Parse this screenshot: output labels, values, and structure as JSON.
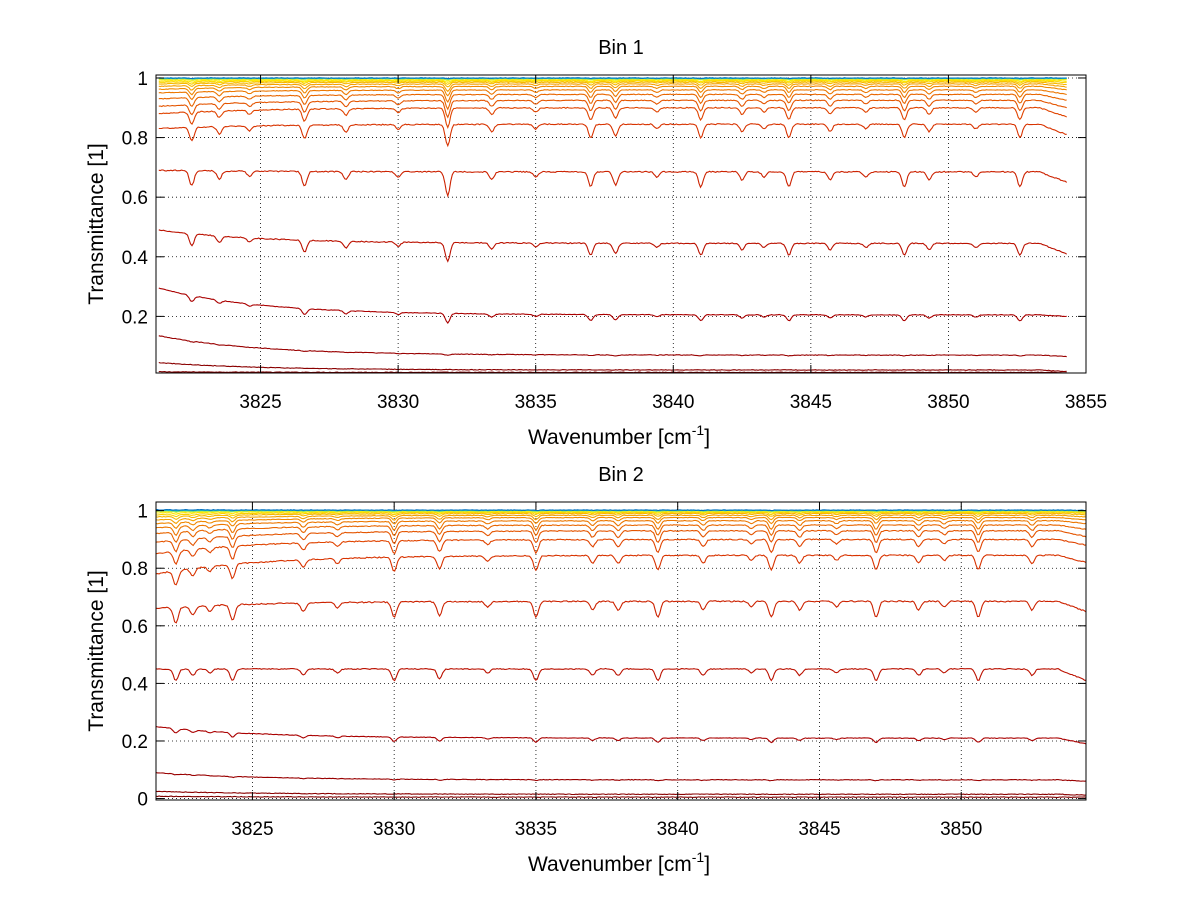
{
  "chart_data": [
    {
      "type": "line",
      "title": "Bin 1",
      "xlabel": "Wavenumber [cm",
      "xlabel_sup": "-1",
      "xlabel_end": "]",
      "ylabel": "Transmittance [1]",
      "xlim": [
        3821.2,
        3855
      ],
      "ylim": [
        0.01,
        1.01
      ],
      "xticks": [
        3825,
        3830,
        3835,
        3840,
        3845,
        3850,
        3855
      ],
      "yticks": [
        0.2,
        0.4,
        0.6,
        0.8,
        1
      ],
      "ytick_labels": [
        "0.2",
        "0.4",
        "0.6",
        "0.8",
        "1"
      ],
      "grid": true,
      "x_start": 3821.3,
      "x_end": 3854.3,
      "absorption_lines": [
        3822.5,
        3823.5,
        3824.6,
        3826.6,
        3828.1,
        3830.0,
        3831.8,
        3833.4,
        3835.0,
        3837.0,
        3837.9,
        3839.4,
        3841.0,
        3842.5,
        3843.3,
        3844.2,
        3845.7,
        3847.0,
        3848.4,
        3849.3,
        3851.0,
        3852.6
      ],
      "series": [
        {
          "baseline": 0.012,
          "start": 0.014,
          "end": 0.011,
          "depth": 0.0,
          "color": "#7f0000"
        },
        {
          "baseline": 0.02,
          "start": 0.045,
          "end": 0.015,
          "depth": 0.0,
          "color": "#8a0000"
        },
        {
          "baseline": 0.07,
          "start": 0.135,
          "end": 0.065,
          "depth": 0.003,
          "color": "#990000"
        },
        {
          "baseline": 0.205,
          "start": 0.295,
          "end": 0.2,
          "depth": 0.02,
          "color": "#aa0000"
        },
        {
          "baseline": 0.445,
          "start": 0.49,
          "end": 0.41,
          "depth": 0.04,
          "color": "#bb1100"
        },
        {
          "baseline": 0.685,
          "start": 0.69,
          "end": 0.65,
          "depth": 0.05,
          "color": "#cc2200"
        },
        {
          "baseline": 0.845,
          "start": 0.83,
          "end": 0.81,
          "depth": 0.045,
          "color": "#d83300"
        },
        {
          "baseline": 0.9,
          "start": 0.88,
          "end": 0.87,
          "depth": 0.04,
          "color": "#e04400"
        },
        {
          "baseline": 0.925,
          "start": 0.905,
          "end": 0.9,
          "depth": 0.035,
          "color": "#e45500"
        },
        {
          "baseline": 0.945,
          "start": 0.93,
          "end": 0.925,
          "depth": 0.03,
          "color": "#e86600"
        },
        {
          "baseline": 0.96,
          "start": 0.95,
          "end": 0.945,
          "depth": 0.025,
          "color": "#ec7700"
        },
        {
          "baseline": 0.972,
          "start": 0.962,
          "end": 0.96,
          "depth": 0.02,
          "color": "#f08800"
        },
        {
          "baseline": 0.98,
          "start": 0.972,
          "end": 0.97,
          "depth": 0.015,
          "color": "#f4a000"
        },
        {
          "baseline": 0.986,
          "start": 0.98,
          "end": 0.978,
          "depth": 0.01,
          "color": "#f7b800"
        },
        {
          "baseline": 0.99,
          "start": 0.986,
          "end": 0.985,
          "depth": 0.007,
          "color": "#fad000"
        },
        {
          "baseline": 0.993,
          "start": 0.99,
          "end": 0.99,
          "depth": 0.005,
          "color": "#fde800"
        },
        {
          "baseline": 0.996,
          "start": 0.995,
          "end": 0.995,
          "depth": 0.003,
          "color": "#e8f020"
        },
        {
          "baseline": 0.998,
          "start": 0.998,
          "end": 0.998,
          "depth": 0.002,
          "color": "#80e070"
        },
        {
          "baseline": 0.999,
          "start": 0.999,
          "end": 0.999,
          "depth": 0.001,
          "color": "#20c0c0"
        },
        {
          "baseline": 1.0,
          "start": 1.0,
          "end": 1.0,
          "depth": 0.001,
          "color": "#0070c0"
        }
      ]
    },
    {
      "type": "line",
      "title": "Bin 2",
      "xlabel": "Wavenumber [cm",
      "xlabel_sup": "-1",
      "xlabel_end": "]",
      "ylabel": "Transmittance [1]",
      "xlim": [
        3821.6,
        3854.4
      ],
      "ylim": [
        -0.005,
        1.03
      ],
      "xticks": [
        3825,
        3830,
        3835,
        3840,
        3845,
        3850
      ],
      "yticks": [
        0,
        0.2,
        0.4,
        0.6,
        0.8,
        1
      ],
      "ytick_labels": [
        "0",
        "0.2",
        "0.4",
        "0.6",
        "0.8",
        "1"
      ],
      "grid": true,
      "x_start": 3821.6,
      "x_end": 3854.4,
      "absorption_lines": [
        3822.3,
        3822.9,
        3823.5,
        3824.3,
        3826.8,
        3828.0,
        3830.0,
        3831.6,
        3833.3,
        3835.0,
        3837.0,
        3837.9,
        3839.3,
        3840.9,
        3842.6,
        3843.3,
        3844.3,
        3845.6,
        3847.0,
        3848.5,
        3849.4,
        3850.6,
        3852.5
      ],
      "series": [
        {
          "baseline": 0.005,
          "start": 0.008,
          "end": 0.005,
          "depth": 0.0,
          "color": "#7f0000"
        },
        {
          "baseline": 0.015,
          "start": 0.025,
          "end": 0.012,
          "depth": 0.0,
          "color": "#8a0000"
        },
        {
          "baseline": 0.065,
          "start": 0.09,
          "end": 0.06,
          "depth": 0.003,
          "color": "#990000"
        },
        {
          "baseline": 0.21,
          "start": 0.25,
          "end": 0.19,
          "depth": 0.015,
          "color": "#aa0000"
        },
        {
          "baseline": 0.45,
          "start": 0.45,
          "end": 0.41,
          "depth": 0.04,
          "color": "#bb1100"
        },
        {
          "baseline": 0.685,
          "start": 0.66,
          "end": 0.65,
          "depth": 0.055,
          "color": "#cc2200"
        },
        {
          "baseline": 0.845,
          "start": 0.78,
          "end": 0.82,
          "depth": 0.05,
          "color": "#d83300"
        },
        {
          "baseline": 0.9,
          "start": 0.85,
          "end": 0.88,
          "depth": 0.045,
          "color": "#e04400"
        },
        {
          "baseline": 0.93,
          "start": 0.89,
          "end": 0.91,
          "depth": 0.04,
          "color": "#e45500"
        },
        {
          "baseline": 0.95,
          "start": 0.92,
          "end": 0.935,
          "depth": 0.035,
          "color": "#e86600"
        },
        {
          "baseline": 0.965,
          "start": 0.94,
          "end": 0.955,
          "depth": 0.03,
          "color": "#ec7700"
        },
        {
          "baseline": 0.976,
          "start": 0.955,
          "end": 0.968,
          "depth": 0.02,
          "color": "#f08800"
        },
        {
          "baseline": 0.984,
          "start": 0.968,
          "end": 0.978,
          "depth": 0.015,
          "color": "#f4a000"
        },
        {
          "baseline": 0.99,
          "start": 0.978,
          "end": 0.986,
          "depth": 0.01,
          "color": "#f7b800"
        },
        {
          "baseline": 0.994,
          "start": 0.985,
          "end": 0.991,
          "depth": 0.007,
          "color": "#fad000"
        },
        {
          "baseline": 0.997,
          "start": 0.992,
          "end": 0.995,
          "depth": 0.005,
          "color": "#fde800"
        },
        {
          "baseline": 0.999,
          "start": 0.997,
          "end": 0.998,
          "depth": 0.003,
          "color": "#e8f020"
        },
        {
          "baseline": 1.0,
          "start": 0.999,
          "end": 0.999,
          "depth": 0.002,
          "color": "#80e070"
        },
        {
          "baseline": 1.001,
          "start": 1.001,
          "end": 1.0,
          "depth": 0.001,
          "color": "#20c0c0"
        },
        {
          "baseline": 1.002,
          "start": 1.003,
          "end": 1.001,
          "depth": 0.001,
          "color": "#0070c0"
        }
      ]
    }
  ]
}
